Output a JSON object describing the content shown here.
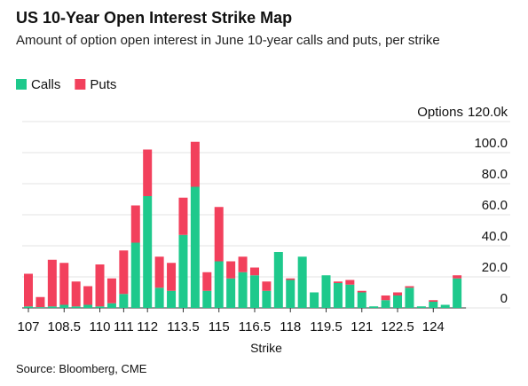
{
  "chart_data": {
    "type": "stacked_bar",
    "title": "US 10-Year Open Interest Strike Map",
    "subtitle": "Amount of option open interest in June 10-year calls and puts, per strike",
    "x_label": "Strike",
    "y_label": "Options",
    "source": "Source: Bloomberg, CME",
    "categories": [
      "107",
      null,
      null,
      "108.5",
      null,
      null,
      "110",
      null,
      "111",
      null,
      "112",
      null,
      null,
      "113.5",
      null,
      null,
      "115",
      null,
      null,
      "116.5",
      null,
      null,
      "118",
      null,
      null,
      "119.5",
      null,
      null,
      "121",
      null,
      null,
      "122.5",
      null,
      null,
      "124",
      null,
      null
    ],
    "series": [
      {
        "name": "Calls",
        "color": "#1ec98c",
        "values": [
          1,
          0.5,
          1,
          2,
          1,
          2,
          1,
          3,
          9,
          42,
          72,
          13,
          11,
          47,
          78,
          11,
          30,
          19,
          23,
          21,
          11,
          36,
          18,
          33,
          10,
          21,
          16,
          15,
          10,
          1,
          5,
          8,
          13,
          1,
          4,
          2,
          19
        ]
      },
      {
        "name": "Puts",
        "color": "#f2405c",
        "values": [
          21,
          6.5,
          30,
          27,
          16,
          12,
          27,
          16,
          28,
          24,
          30,
          20,
          18,
          24,
          29,
          12,
          35,
          11,
          10,
          5,
          6,
          0,
          1,
          0,
          0,
          0,
          1,
          3,
          1,
          0,
          3,
          2,
          1,
          0,
          1,
          0,
          2
        ]
      }
    ],
    "ylim": [
      0,
      120
    ],
    "yticks": [
      0,
      {
        "value": 20,
        "label": "20.0"
      },
      {
        "value": 40,
        "label": "40.0"
      },
      {
        "value": 60,
        "label": "60.0"
      },
      {
        "value": 80,
        "label": "80.0"
      },
      {
        "value": 100,
        "label": "100.0"
      },
      {
        "value": 120,
        "label": "120.0k"
      }
    ],
    "grid": true
  }
}
